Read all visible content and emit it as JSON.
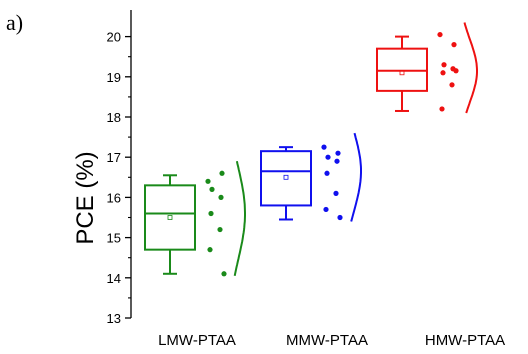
{
  "panel_label": "a)",
  "chart_data": {
    "type": "box",
    "ylabel": "PCE (%)",
    "xlabel": "",
    "ylim": [
      13,
      20.4
    ],
    "yticks": [
      13,
      14,
      15,
      16,
      17,
      18,
      19,
      20
    ],
    "minor_ticks": true,
    "grid": false,
    "categories": [
      "LMW-PTAA",
      "MMW-PTAA",
      "HMW-PTAA"
    ],
    "series": [
      {
        "color": "#1a8a1a",
        "min": 14.1,
        "q1": 14.7,
        "median": 15.6,
        "q3": 16.3,
        "max": 16.55,
        "mean": 15.5,
        "points": [
          16.4,
          16.6,
          16.2,
          16.0,
          15.6,
          15.2,
          14.7,
          14.1
        ]
      },
      {
        "color": "#1010ee",
        "min": 15.45,
        "q1": 15.8,
        "median": 16.65,
        "q3": 17.15,
        "max": 17.25,
        "mean": 16.5,
        "points": [
          17.25,
          17.1,
          17.0,
          16.9,
          16.6,
          16.1,
          15.7,
          15.5
        ]
      },
      {
        "color": "#ee1111",
        "min": 18.15,
        "q1": 18.65,
        "median": 19.15,
        "q3": 19.7,
        "max": 20.0,
        "mean": 19.1,
        "points": [
          20.05,
          19.8,
          19.3,
          19.2,
          19.1,
          18.8,
          18.2,
          19.15
        ]
      }
    ]
  }
}
